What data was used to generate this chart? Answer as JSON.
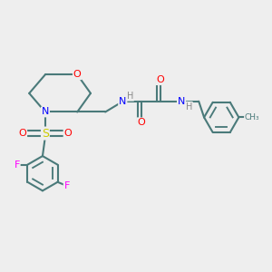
{
  "background_color": "#eeeeee",
  "bond_color": "#4a7a7a",
  "bond_width": 1.5,
  "atom_colors": {
    "O": "#ff0000",
    "N": "#0000ff",
    "S": "#cccc00",
    "F": "#ff00ff",
    "H": "#888888",
    "C": "#4a7a7a"
  },
  "figsize": [
    3.0,
    3.0
  ],
  "dpi": 100
}
